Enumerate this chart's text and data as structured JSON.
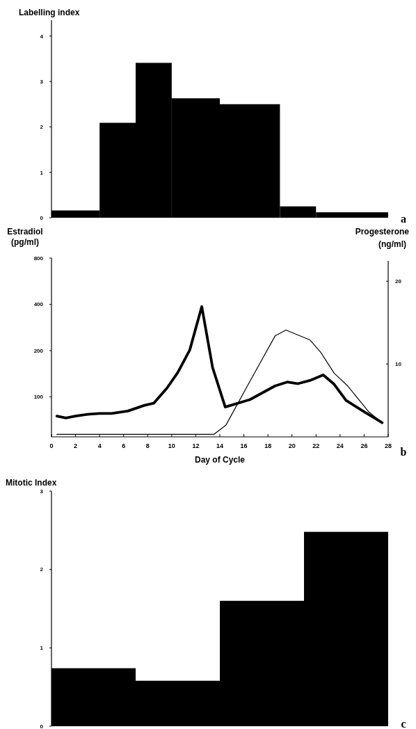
{
  "chart_data": [
    {
      "type": "histogram",
      "title": "Labelling index",
      "bins": [
        0,
        4,
        7,
        10,
        14,
        19,
        22,
        28
      ],
      "values": [
        0.16,
        2.09,
        3.41,
        2.63,
        2.5,
        0.25,
        0.12
      ],
      "color": "#000000",
      "xlim": [
        0,
        28
      ],
      "ylim": [
        0,
        4.35
      ],
      "yticks": [
        0,
        1,
        2,
        3,
        4
      ],
      "tick_labels": "y",
      "annotations": [
        "a"
      ]
    },
    {
      "type": "line",
      "xlabel": "Day of Cycle",
      "ylabel": "Estradiol (pg/ml)",
      "y2label": "Progesterone (ng/ml)",
      "log": "y",
      "xlim": [
        0,
        28
      ],
      "xticks": [
        0,
        2,
        4,
        6,
        8,
        10,
        12,
        14,
        16,
        18,
        20,
        22,
        24,
        26,
        28
      ],
      "ylim": [
        55,
        800
      ],
      "yticks": [
        100,
        200,
        400,
        800
      ],
      "y2lim": [
        1.2,
        22.8
      ],
      "y2ticks": [
        10,
        20
      ],
      "annotations": [
        "b"
      ],
      "series": [
        {
          "color": "#000000",
          "x": [
            0.45,
            1.2,
            2,
            3,
            4,
            5,
            6.35,
            7.7,
            8.5,
            9.6,
            10.5,
            11.5,
            12.5,
            13.4,
            14.45,
            16.5,
            18.6,
            19.6,
            20.5,
            21.5,
            22.6,
            23.5,
            24.5,
            25.9,
            27.5
          ],
          "values": [
            75,
            73,
            75,
            77,
            78,
            78,
            81,
            88,
            91,
            114,
            144,
            202,
            387,
            155,
            86,
            96,
            118,
            125,
            122,
            128,
            139,
            121,
            95,
            81,
            68
          ]
        },
        {
          "color": "#000000",
          "axis": "y2",
          "x": [
            0.45,
            13.5,
            14.5,
            16.5,
            18.6,
            19.5,
            21.5,
            22.4,
            23.5,
            24.6,
            26.4,
            27.5
          ],
          "values": [
            1.5,
            1.5,
            2.6,
            7.9,
            13.4,
            14.1,
            12.9,
            11.4,
            8.9,
            7.4,
            4.2,
            2.9
          ]
        }
      ]
    },
    {
      "type": "histogram",
      "title": "Mitotic Index",
      "bins": [
        0,
        7,
        14,
        21,
        28
      ],
      "values": [
        0.74,
        0.58,
        1.6,
        2.48
      ],
      "color": "#000000",
      "xlim": [
        0,
        28
      ],
      "ylim": [
        0,
        3
      ],
      "yticks": [
        0,
        1,
        2,
        3
      ],
      "tick_labels": "y",
      "annotations": [
        "c"
      ]
    }
  ]
}
